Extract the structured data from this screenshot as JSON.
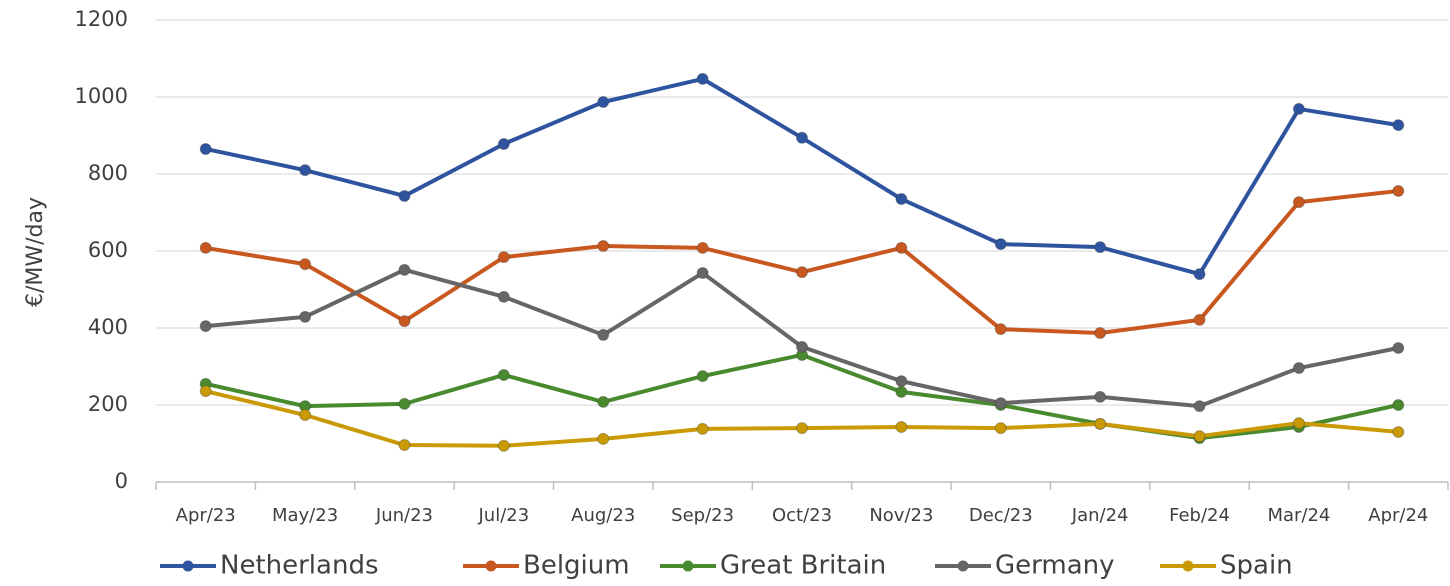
{
  "chart_data": {
    "type": "line",
    "y_label": "€/MW/day",
    "categories": [
      "Apr/23",
      "May/23",
      "Jun/23",
      "Jul/23",
      "Aug/23",
      "Sep/23",
      "Oct/23",
      "Nov/23",
      "Dec/23",
      "Jan/24",
      "Feb/24",
      "Mar/24",
      "Apr/24"
    ],
    "series": [
      {
        "name": "Netherlands",
        "color": "#2e54a0",
        "values": [
          865,
          810,
          743,
          878,
          987,
          1047,
          894,
          735,
          618,
          610,
          540,
          969,
          927
        ]
      },
      {
        "name": "Belgium",
        "color": "#c8581f",
        "values": [
          608,
          566,
          418,
          584,
          613,
          608,
          545,
          608,
          397,
          387,
          421,
          727,
          756
        ]
      },
      {
        "name": "Great Britain",
        "color": "#4a8a2f",
        "values": [
          255,
          197,
          203,
          278,
          208,
          275,
          330,
          234,
          200,
          151,
          114,
          143,
          200
        ]
      },
      {
        "name": "Germany",
        "color": "#666666",
        "values": [
          405,
          429,
          551,
          481,
          382,
          543,
          351,
          262,
          205,
          221,
          197,
          296,
          348
        ]
      },
      {
        "name": "Spain",
        "color": "#c99a06",
        "values": [
          236,
          174,
          96,
          94,
          112,
          138,
          140,
          143,
          140,
          151,
          119,
          153,
          130
        ]
      }
    ],
    "ylim": [
      0,
      1200
    ],
    "yticks": [
      0,
      200,
      400,
      600,
      800,
      1000,
      1200
    ],
    "grid": true,
    "legend": "bottom"
  }
}
